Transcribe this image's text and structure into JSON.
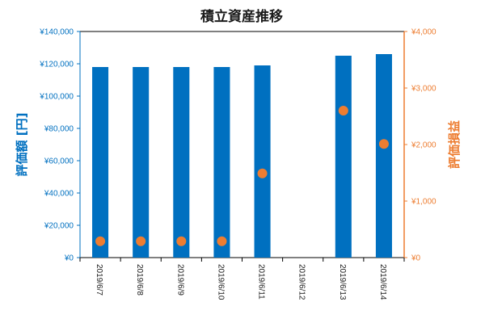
{
  "chart_data": {
    "type": "bar",
    "title": "積立資産推移",
    "categories": [
      "2019/6/7",
      "2019/6/8",
      "2019/6/9",
      "2019/6/10",
      "2019/6/11",
      "2019/6/12",
      "2019/6/13",
      "2019/6/14"
    ],
    "series": [
      {
        "name": "評価額",
        "type": "bar",
        "axis": "left",
        "values": [
          118000,
          118000,
          118000,
          118000,
          119000,
          null,
          125000,
          126000
        ]
      },
      {
        "name": "評価損益",
        "type": "scatter",
        "axis": "right",
        "values": [
          290,
          290,
          290,
          290,
          1490,
          null,
          2600,
          2010
        ]
      }
    ],
    "ylabel": "評価額 [円]",
    "y2label": "評価損益",
    "ylim": [
      0,
      140000
    ],
    "y2lim": [
      0,
      4000
    ],
    "yticks": [
      "¥0",
      "¥20,000",
      "¥40,000",
      "¥60,000",
      "¥80,000",
      "¥100,000",
      "¥120,000",
      "¥140,000"
    ],
    "y2ticks": [
      "¥0",
      "¥1,000",
      "¥2,000",
      "¥3,000",
      "¥4,000"
    ],
    "grid": false,
    "legend": "none",
    "colors": {
      "bar": "#0070C0",
      "marker": "#ED7D31",
      "left_axis": "#0070C0",
      "right_axis": "#ED7D31"
    }
  }
}
